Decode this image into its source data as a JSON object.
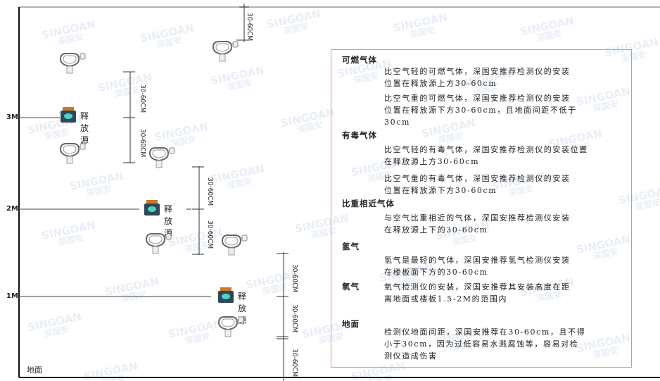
{
  "watermark": {
    "brand": "SINGOAN",
    "cn": "深国安"
  },
  "levels": [
    "3M",
    "2M",
    "1M"
  ],
  "ground_label": "地面",
  "source_label": "释放源",
  "dimension_label": "30-60CM",
  "colors": {
    "box_border": "#e88888",
    "source_body": "#2f4858",
    "source_accent": "#4fd1c5",
    "source_cap": "#c87a2a"
  },
  "legend": {
    "sections": [
      {
        "title": "可燃气体",
        "paragraphs": [
          "比空气轻的可燃气体，深国安推荐检测仪的安装\n位置在释放源上方30-60cm",
          "比空气重的可燃气体，深国安推荐检测仪的安装\n位置在释放源下方30-60cm，且地面间距不低于\n30cm"
        ]
      },
      {
        "title": "有毒气体",
        "paragraphs": [
          "比空气轻的有毒气体，深国安推荐检测仪的安装位置\n在释放源上方30-60cm",
          "比空气重的有毒气体，深国安推荐检测仪的安装\n位置在释放源下方30-60cm"
        ]
      },
      {
        "title": "比重相近气体",
        "paragraphs": [
          "与空气比重相近的气体，深国安推荐检测仪安装\n在释放源上下的30-60cm"
        ]
      },
      {
        "title": "氢气",
        "paragraphs": [
          "氢气是最轻的气体，深国安推荐氢气检测仪安装\n在楼板面下方的30-60cm"
        ]
      },
      {
        "title": "氧气",
        "paragraphs": [
          "氧气检测仪的安装，深国安推荐其安装高度在距\n离地面或楼板1.5-2M的范围内"
        ]
      },
      {
        "title": "地面",
        "paragraphs": [
          "检测仪地面间距，深国安推荐在30-60cm，且不得\n小于30cm，因为过低容易水溅腐蚀等，容易对检\n测仪造成伤害"
        ]
      }
    ]
  }
}
